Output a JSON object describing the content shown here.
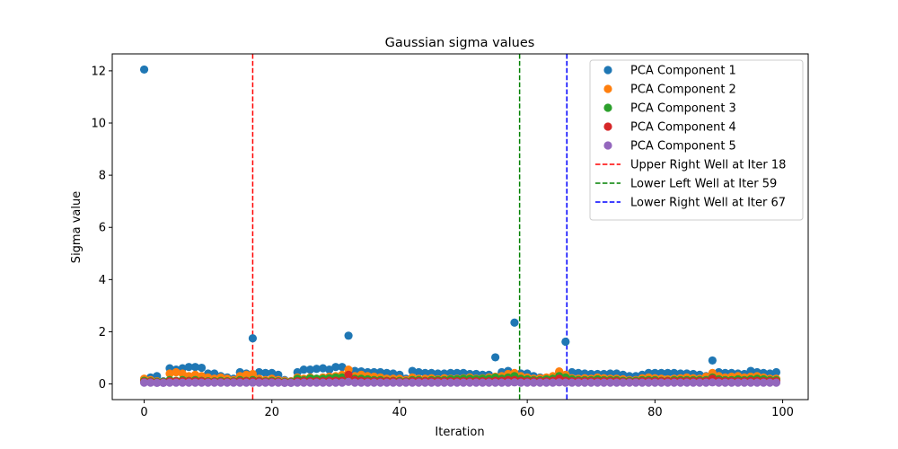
{
  "chart_data": {
    "type": "scatter",
    "title": "Gaussian sigma values",
    "xlabel": "Iteration",
    "ylabel": "Sigma value",
    "xlim": [
      -5,
      104
    ],
    "ylim": [
      -0.6,
      12.65
    ],
    "xticks": [
      0,
      20,
      40,
      60,
      80,
      100
    ],
    "yticks": [
      0,
      2,
      4,
      6,
      8,
      10,
      12
    ],
    "grid": false,
    "legend_position": "top-right",
    "x": [
      0,
      1,
      2,
      3,
      4,
      5,
      6,
      7,
      8,
      9,
      10,
      11,
      12,
      13,
      14,
      15,
      16,
      17,
      18,
      19,
      20,
      21,
      22,
      23,
      24,
      25,
      26,
      27,
      28,
      29,
      30,
      31,
      32,
      33,
      34,
      35,
      36,
      37,
      38,
      39,
      40,
      41,
      42,
      43,
      44,
      45,
      46,
      47,
      48,
      49,
      50,
      51,
      52,
      53,
      54,
      55,
      56,
      57,
      58,
      59,
      60,
      61,
      62,
      63,
      64,
      65,
      66,
      67,
      68,
      69,
      70,
      71,
      72,
      73,
      74,
      75,
      76,
      77,
      78,
      79,
      80,
      81,
      82,
      83,
      84,
      85,
      86,
      87,
      88,
      89,
      90,
      91,
      92,
      93,
      94,
      95,
      96,
      97,
      98,
      99
    ],
    "series": [
      {
        "name": "PCA Component 1",
        "color": "#1f77b4",
        "values": [
          12.05,
          0.25,
          0.3,
          0.1,
          0.6,
          0.55,
          0.6,
          0.65,
          0.65,
          0.62,
          0.4,
          0.4,
          0.3,
          0.25,
          0.2,
          0.45,
          0.4,
          1.75,
          0.45,
          0.42,
          0.42,
          0.35,
          0.15,
          0.1,
          0.45,
          0.55,
          0.55,
          0.58,
          0.6,
          0.55,
          0.65,
          0.65,
          1.85,
          0.5,
          0.48,
          0.45,
          0.45,
          0.45,
          0.42,
          0.4,
          0.35,
          0.2,
          0.5,
          0.45,
          0.42,
          0.42,
          0.4,
          0.4,
          0.42,
          0.42,
          0.42,
          0.38,
          0.38,
          0.35,
          0.35,
          1.02,
          0.45,
          0.5,
          2.35,
          0.4,
          0.4,
          0.3,
          0.25,
          0.2,
          0.25,
          0.45,
          1.62,
          0.45,
          0.42,
          0.4,
          0.38,
          0.38,
          0.38,
          0.4,
          0.4,
          0.35,
          0.3,
          0.3,
          0.35,
          0.42,
          0.42,
          0.42,
          0.42,
          0.42,
          0.4,
          0.4,
          0.38,
          0.35,
          0.3,
          0.9,
          0.45,
          0.42,
          0.42,
          0.4,
          0.38,
          0.5,
          0.45,
          0.42,
          0.4,
          0.45
        ]
      },
      {
        "name": "PCA Component 2",
        "color": "#ff7f0e",
        "values": [
          0.2,
          0.15,
          0.1,
          0.08,
          0.4,
          0.45,
          0.4,
          0.3,
          0.35,
          0.3,
          0.25,
          0.2,
          0.25,
          0.2,
          0.15,
          0.3,
          0.35,
          0.38,
          0.2,
          0.15,
          0.2,
          0.15,
          0.12,
          0.1,
          0.25,
          0.2,
          0.25,
          0.2,
          0.25,
          0.28,
          0.3,
          0.35,
          0.55,
          0.3,
          0.35,
          0.3,
          0.28,
          0.25,
          0.2,
          0.2,
          0.2,
          0.15,
          0.25,
          0.2,
          0.2,
          0.22,
          0.18,
          0.22,
          0.2,
          0.2,
          0.22,
          0.25,
          0.2,
          0.22,
          0.25,
          0.28,
          0.3,
          0.38,
          0.42,
          0.3,
          0.25,
          0.2,
          0.22,
          0.25,
          0.3,
          0.48,
          0.35,
          0.22,
          0.2,
          0.22,
          0.2,
          0.25,
          0.22,
          0.2,
          0.2,
          0.18,
          0.15,
          0.15,
          0.22,
          0.25,
          0.22,
          0.2,
          0.18,
          0.2,
          0.22,
          0.25,
          0.22,
          0.2,
          0.28,
          0.42,
          0.3,
          0.25,
          0.28,
          0.3,
          0.25,
          0.28,
          0.3,
          0.25,
          0.2,
          0.2
        ]
      },
      {
        "name": "PCA Component 3",
        "color": "#2ca02c",
        "values": [
          0.12,
          0.1,
          0.08,
          0.08,
          0.15,
          0.12,
          0.15,
          0.12,
          0.15,
          0.12,
          0.1,
          0.1,
          0.12,
          0.1,
          0.1,
          0.15,
          0.12,
          0.15,
          0.12,
          0.1,
          0.12,
          0.1,
          0.08,
          0.08,
          0.2,
          0.15,
          0.22,
          0.2,
          0.2,
          0.22,
          0.25,
          0.25,
          0.3,
          0.2,
          0.2,
          0.18,
          0.15,
          0.15,
          0.12,
          0.12,
          0.12,
          0.1,
          0.15,
          0.15,
          0.12,
          0.15,
          0.15,
          0.15,
          0.18,
          0.18,
          0.2,
          0.2,
          0.18,
          0.2,
          0.2,
          0.25,
          0.2,
          0.25,
          0.3,
          0.2,
          0.18,
          0.15,
          0.15,
          0.18,
          0.2,
          0.3,
          0.25,
          0.18,
          0.15,
          0.15,
          0.15,
          0.18,
          0.15,
          0.15,
          0.15,
          0.12,
          0.12,
          0.12,
          0.15,
          0.15,
          0.15,
          0.12,
          0.12,
          0.15,
          0.15,
          0.15,
          0.15,
          0.15,
          0.15,
          0.25,
          0.18,
          0.15,
          0.15,
          0.18,
          0.15,
          0.18,
          0.2,
          0.18,
          0.15,
          0.15
        ]
      },
      {
        "name": "PCA Component 4",
        "color": "#d62728",
        "values": [
          0.08,
          0.08,
          0.06,
          0.06,
          0.1,
          0.1,
          0.1,
          0.1,
          0.1,
          0.1,
          0.08,
          0.08,
          0.08,
          0.08,
          0.08,
          0.1,
          0.1,
          0.1,
          0.1,
          0.08,
          0.08,
          0.08,
          0.06,
          0.06,
          0.1,
          0.1,
          0.1,
          0.1,
          0.1,
          0.12,
          0.12,
          0.12,
          0.35,
          0.15,
          0.12,
          0.1,
          0.1,
          0.1,
          0.1,
          0.1,
          0.08,
          0.08,
          0.1,
          0.1,
          0.1,
          0.1,
          0.1,
          0.1,
          0.1,
          0.1,
          0.1,
          0.1,
          0.1,
          0.1,
          0.1,
          0.12,
          0.12,
          0.15,
          0.15,
          0.12,
          0.1,
          0.1,
          0.1,
          0.1,
          0.12,
          0.2,
          0.12,
          0.1,
          0.1,
          0.1,
          0.1,
          0.1,
          0.1,
          0.1,
          0.1,
          0.08,
          0.08,
          0.08,
          0.1,
          0.1,
          0.1,
          0.1,
          0.1,
          0.1,
          0.1,
          0.1,
          0.1,
          0.1,
          0.1,
          0.2,
          0.12,
          0.1,
          0.1,
          0.1,
          0.1,
          0.12,
          0.12,
          0.1,
          0.1,
          0.1
        ]
      },
      {
        "name": "PCA Component 5",
        "color": "#9467bd",
        "values": [
          0.05,
          0.05,
          0.04,
          0.04,
          0.05,
          0.05,
          0.05,
          0.05,
          0.05,
          0.05,
          0.05,
          0.05,
          0.05,
          0.05,
          0.05,
          0.05,
          0.05,
          0.05,
          0.05,
          0.05,
          0.05,
          0.05,
          0.04,
          0.04,
          0.05,
          0.05,
          0.05,
          0.05,
          0.05,
          0.05,
          0.05,
          0.05,
          0.08,
          0.05,
          0.05,
          0.05,
          0.05,
          0.05,
          0.05,
          0.05,
          0.05,
          0.05,
          0.05,
          0.05,
          0.05,
          0.05,
          0.05,
          0.05,
          0.05,
          0.05,
          0.05,
          0.05,
          0.05,
          0.05,
          0.05,
          0.05,
          0.05,
          0.05,
          0.06,
          0.05,
          0.05,
          0.05,
          0.05,
          0.05,
          0.05,
          0.06,
          0.05,
          0.05,
          0.05,
          0.05,
          0.05,
          0.05,
          0.05,
          0.05,
          0.05,
          0.05,
          0.05,
          0.05,
          0.05,
          0.05,
          0.05,
          0.05,
          0.05,
          0.05,
          0.05,
          0.05,
          0.05,
          0.05,
          0.05,
          0.06,
          0.05,
          0.05,
          0.05,
          0.05,
          0.05,
          0.05,
          0.05,
          0.05,
          0.05,
          0.05
        ]
      }
    ],
    "vlines": [
      {
        "name": "Upper Right Well at Iter 18",
        "x": 17,
        "color": "#ff0000"
      },
      {
        "name": "Lower Right Well at Iter 67",
        "x": 66.2,
        "color": "#0000ff"
      },
      {
        "name": "Lower Left Well at Iter 59",
        "x": 58.8,
        "color": "#008000"
      }
    ]
  }
}
